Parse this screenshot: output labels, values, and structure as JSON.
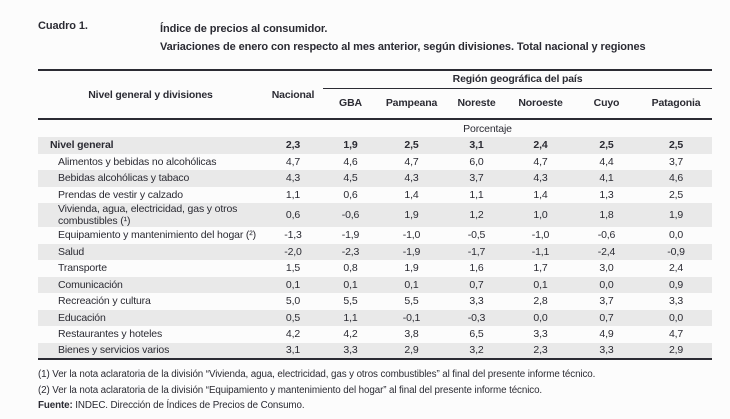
{
  "header": {
    "table_number": "Cuadro 1.",
    "title_line1": "Índice de precios al consumidor.",
    "title_line2": "Variaciones de enero con respecto al mes anterior, según divisiones. Total nacional y regiones"
  },
  "table": {
    "first_col_header": "Nivel general y divisiones",
    "national_header": "Nacional",
    "region_group_header": "Región geográfica del país",
    "region_headers": [
      "GBA",
      "Pampeana",
      "Noreste",
      "Noroeste",
      "Cuyo",
      "Patagonia"
    ],
    "unit_label": "Porcentaje",
    "columns": [
      "Nacional",
      "GBA",
      "Pampeana",
      "Noreste",
      "Noroeste",
      "Cuyo",
      "Patagonia"
    ],
    "rows": [
      {
        "label": "Nivel general",
        "bold": true,
        "values": [
          "2,3",
          "1,9",
          "2,5",
          "3,1",
          "2,4",
          "2,5",
          "2,5"
        ]
      },
      {
        "label": "Alimentos y bebidas no alcohólicas",
        "bold": false,
        "values": [
          "4,7",
          "4,6",
          "4,7",
          "6,0",
          "4,7",
          "4,4",
          "3,7"
        ]
      },
      {
        "label": "Bebidas alcohólicas y tabaco",
        "bold": false,
        "values": [
          "4,3",
          "4,5",
          "4,3",
          "3,7",
          "4,3",
          "4,1",
          "4,6"
        ]
      },
      {
        "label": "Prendas de vestir y calzado",
        "bold": false,
        "values": [
          "1,1",
          "0,6",
          "1,4",
          "1,1",
          "1,4",
          "1,3",
          "2,5"
        ]
      },
      {
        "label": "Vivienda, agua, electricidad, gas y otros combustibles (¹)",
        "bold": false,
        "values": [
          "0,6",
          "-0,6",
          "1,9",
          "1,2",
          "1,0",
          "1,8",
          "1,9"
        ]
      },
      {
        "label": "Equipamiento y mantenimiento del hogar (²)",
        "bold": false,
        "values": [
          "-1,3",
          "-1,9",
          "-1,0",
          "-0,5",
          "-1,0",
          "-0,6",
          "0,0"
        ]
      },
      {
        "label": "Salud",
        "bold": false,
        "values": [
          "-2,0",
          "-2,3",
          "-1,9",
          "-1,7",
          "-1,1",
          "-2,4",
          "-0,9"
        ]
      },
      {
        "label": "Transporte",
        "bold": false,
        "values": [
          "1,5",
          "0,8",
          "1,9",
          "1,6",
          "1,7",
          "3,0",
          "2,4"
        ]
      },
      {
        "label": "Comunicación",
        "bold": false,
        "values": [
          "0,1",
          "0,1",
          "0,1",
          "0,7",
          "0,1",
          "0,0",
          "0,9"
        ]
      },
      {
        "label": "Recreación y cultura",
        "bold": false,
        "values": [
          "5,0",
          "5,5",
          "5,5",
          "3,3",
          "2,8",
          "3,7",
          "3,3"
        ]
      },
      {
        "label": "Educación",
        "bold": false,
        "values": [
          "0,5",
          "1,1",
          "-0,1",
          "-0,3",
          "0,0",
          "0,7",
          "0,0"
        ]
      },
      {
        "label": "Restaurantes y hoteles",
        "bold": false,
        "values": [
          "4,2",
          "4,2",
          "3,8",
          "6,5",
          "3,3",
          "4,9",
          "4,7"
        ]
      },
      {
        "label": "Bienes y servicios varios",
        "bold": false,
        "values": [
          "3,1",
          "3,3",
          "2,9",
          "3,2",
          "2,3",
          "3,3",
          "2,9"
        ]
      }
    ]
  },
  "footnotes": {
    "note1": "(1) Ver la nota aclaratoria de la división “Vivienda, agua, electricidad, gas y otros combustibles” al final del presente informe técnico.",
    "note2": "(2) Ver la nota aclaratoria de la división “Equipamiento y mantenimiento del hogar” al final del presente informe técnico.",
    "source_label": "Fuente:",
    "source_text": " INDEC. Dirección de Índices de Precios de Consumo."
  },
  "colors": {
    "text": "#2b2b33",
    "rule": "#2b2b33",
    "row_stripe": "#e9e9e9",
    "background": "#fcfcfc"
  }
}
